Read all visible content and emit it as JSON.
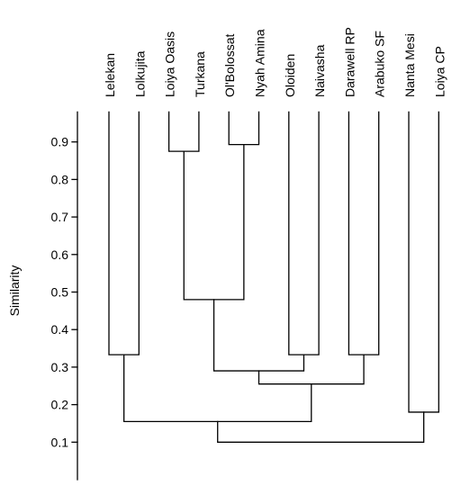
{
  "chart_data": {
    "type": "dendrogram",
    "ylabel": "Similarity",
    "yticks": [
      0.1,
      0.2,
      0.3,
      0.4,
      0.5,
      0.6,
      0.7,
      0.8,
      0.9
    ],
    "leaves": [
      "Lelekan",
      "Lolkujita",
      "Loiya Oasis",
      "Turkana",
      "Ol'Bolossat",
      "Nyah Amina",
      "Oloiden",
      "Naivasha",
      "Darawell RP",
      "Arabuko SF",
      "Nanta Mesi",
      "Loiya CP"
    ],
    "merges": [
      {
        "id": "A",
        "left": 0,
        "right": 1,
        "similarity": 0.333
      },
      {
        "id": "B",
        "left": 2,
        "right": 3,
        "similarity": 0.875
      },
      {
        "id": "C",
        "left": 4,
        "right": 5,
        "similarity": 0.893
      },
      {
        "id": "D",
        "left": "B",
        "right": "C",
        "similarity": 0.48
      },
      {
        "id": "E",
        "left": 6,
        "right": 7,
        "similarity": 0.333
      },
      {
        "id": "F",
        "left": 8,
        "right": 9,
        "similarity": 0.333
      },
      {
        "id": "G",
        "left": "D",
        "right": "E",
        "similarity": 0.29
      },
      {
        "id": "H",
        "left": "G",
        "right": "F",
        "similarity": 0.255
      },
      {
        "id": "I",
        "left": 10,
        "right": 11,
        "similarity": 0.18
      },
      {
        "id": "J",
        "left": "A",
        "right": "H",
        "similarity": 0.155
      },
      {
        "id": "K",
        "left": "J",
        "right": "I",
        "similarity": 0.1
      }
    ],
    "leaf_top_similarity": 0.98,
    "axis_range": [
      0.0,
      0.98
    ]
  }
}
